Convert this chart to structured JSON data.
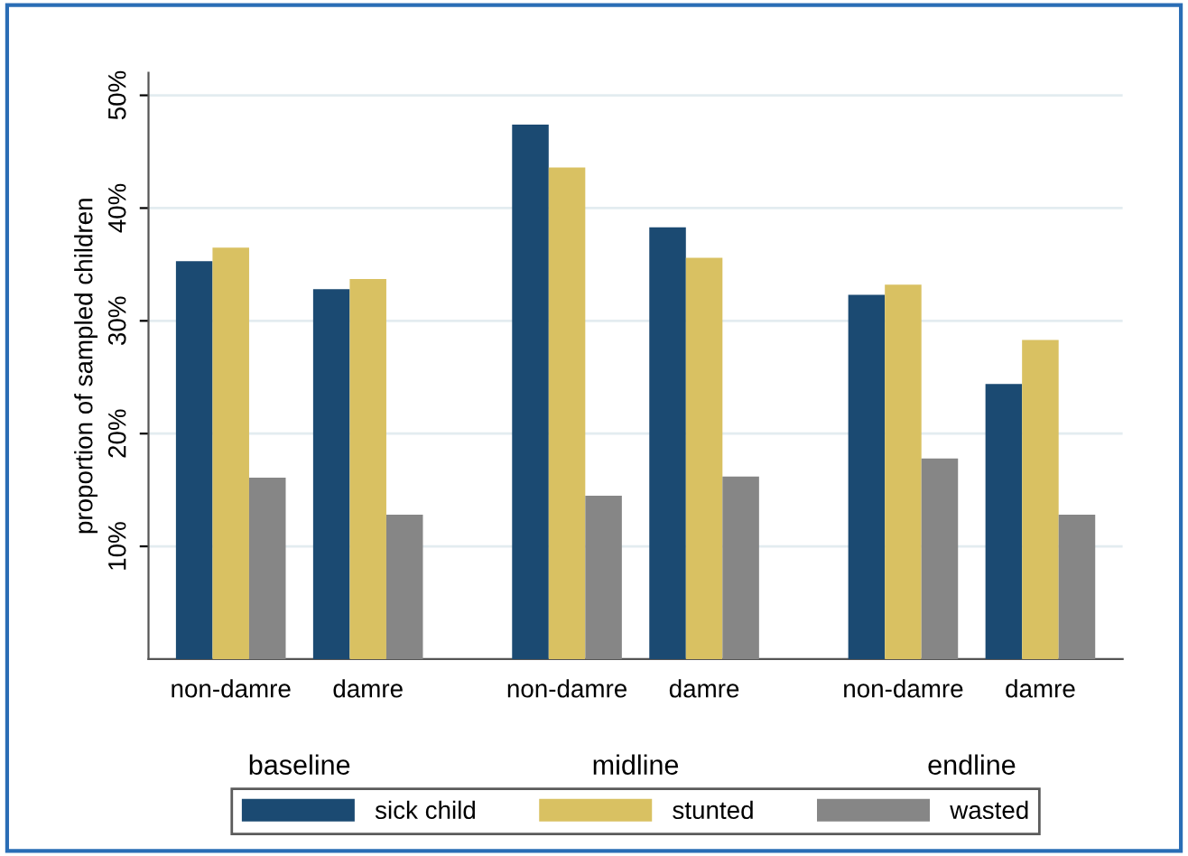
{
  "chart_data": {
    "type": "bar",
    "ylabel": "proportion of sampled children",
    "categories": [
      "non-damre",
      "damre",
      "non-damre",
      "damre",
      "non-damre",
      "damre"
    ],
    "annotations": [
      "baseline",
      "midline",
      "endline"
    ],
    "series": [
      {
        "name": "sick child",
        "color": "#1b4a72",
        "values": [
          35.3,
          32.8,
          47.4,
          38.3,
          32.3,
          24.4
        ]
      },
      {
        "name": "stunted",
        "color": "#d9c162",
        "values": [
          36.5,
          33.7,
          43.6,
          35.6,
          33.2,
          28.3
        ]
      },
      {
        "name": "wasted",
        "color": "#868686",
        "values": [
          16.1,
          12.8,
          14.5,
          16.2,
          17.8,
          12.8
        ]
      }
    ],
    "ylim": [
      0,
      52
    ],
    "yticks": [
      {
        "value": 10,
        "label": "10%"
      },
      {
        "value": 20,
        "label": "20%"
      },
      {
        "value": 30,
        "label": "30%"
      },
      {
        "value": 40,
        "label": "40%"
      },
      {
        "value": 50,
        "label": "50%"
      }
    ],
    "grid": "y",
    "legend": "bottom"
  }
}
